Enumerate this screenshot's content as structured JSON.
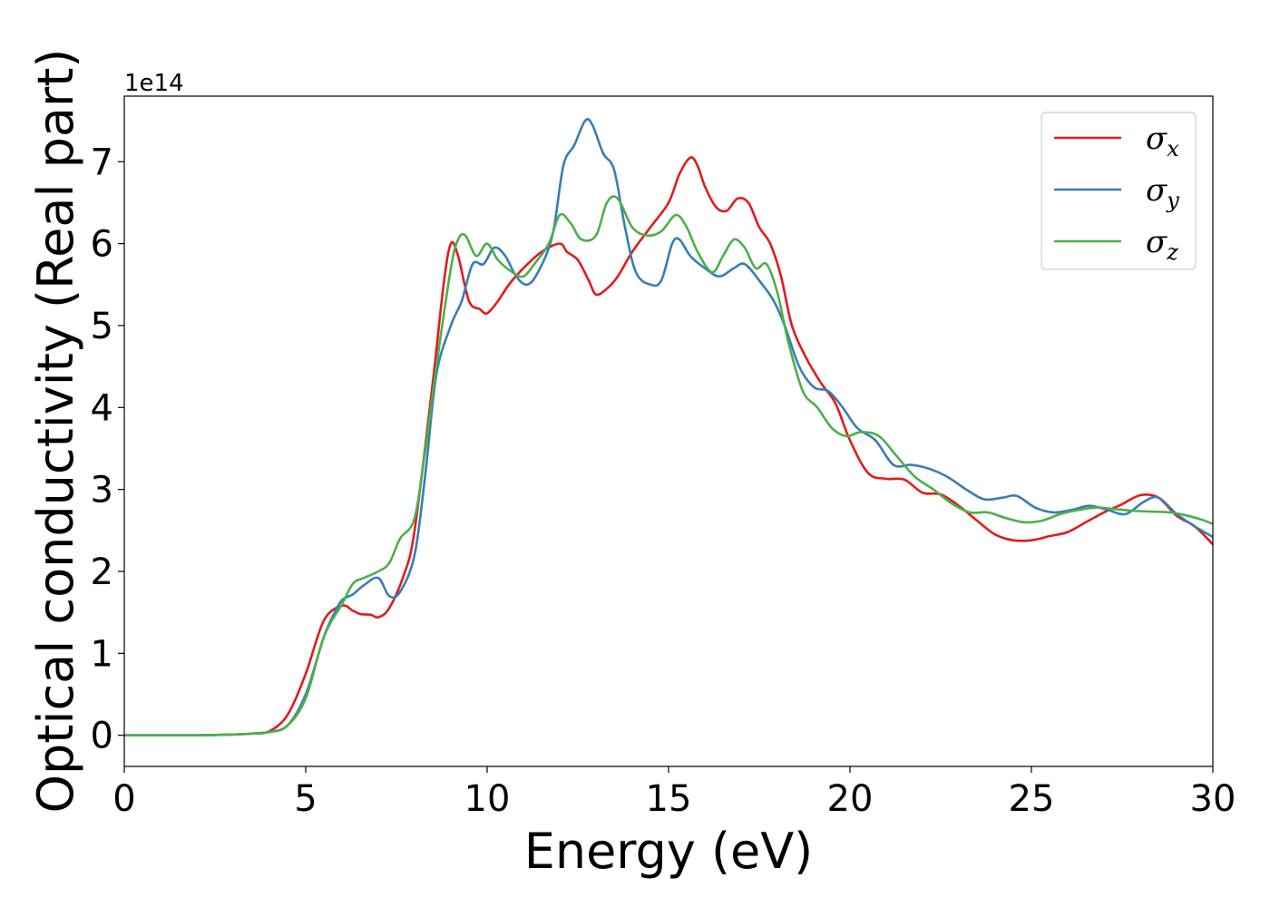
{
  "chart_data": {
    "type": "line",
    "title": "",
    "xlabel": "Energy (eV)",
    "ylabel": "Optical conductivity (Real part)",
    "y_offset_label": "1e14",
    "xlim": [
      0,
      30
    ],
    "ylim": [
      -0.38,
      7.8
    ],
    "x_ticks": [
      0,
      5,
      10,
      15,
      20,
      25,
      30
    ],
    "y_ticks": [
      0,
      1,
      2,
      3,
      4,
      5,
      6,
      7
    ],
    "grid": false,
    "legend_position": "top-right",
    "series": [
      {
        "name": "σx",
        "symbol": "σ",
        "subscript": "x",
        "color": "#e41a1c",
        "x": [
          0,
          2,
          3,
          3.5,
          4,
          4.5,
          5,
          5.5,
          6,
          6.3,
          6.5,
          6.8,
          7,
          7.3,
          7.7,
          8,
          8.5,
          8.8,
          9,
          9.2,
          9.5,
          9.8,
          10,
          10.3,
          10.6,
          11,
          11.5,
          12,
          12.2,
          12.5,
          12.8,
          13,
          13.3,
          13.6,
          14,
          14.5,
          15,
          15.3,
          15.6,
          15.8,
          16,
          16.3,
          16.6,
          16.9,
          17.2,
          17.5,
          17.8,
          18.1,
          18.4,
          18.8,
          19.2,
          19.6,
          20,
          20.5,
          21,
          21.5,
          22,
          22.5,
          23,
          23.5,
          24,
          24.5,
          25,
          25.5,
          26,
          26.5,
          27,
          27.5,
          28,
          28.5,
          29,
          29.5,
          30
        ],
        "y": [
          0,
          0,
          0.01,
          0.02,
          0.05,
          0.25,
          0.75,
          1.4,
          1.58,
          1.52,
          1.48,
          1.47,
          1.44,
          1.55,
          1.95,
          2.5,
          4.3,
          5.5,
          6.0,
          5.85,
          5.3,
          5.2,
          5.15,
          5.3,
          5.5,
          5.7,
          5.9,
          6.0,
          5.9,
          5.8,
          5.55,
          5.38,
          5.45,
          5.6,
          5.9,
          6.2,
          6.5,
          6.85,
          7.05,
          6.95,
          6.7,
          6.45,
          6.4,
          6.55,
          6.5,
          6.2,
          6.0,
          5.6,
          5.0,
          4.6,
          4.3,
          4.05,
          3.6,
          3.2,
          3.13,
          3.12,
          2.96,
          2.94,
          2.8,
          2.62,
          2.45,
          2.38,
          2.38,
          2.43,
          2.48,
          2.6,
          2.72,
          2.82,
          2.93,
          2.9,
          2.68,
          2.55,
          2.33
        ]
      },
      {
        "name": "σy",
        "symbol": "σ",
        "subscript": "y",
        "color": "#377eb8",
        "x": [
          0,
          2,
          3,
          3.5,
          4,
          4.5,
          5,
          5.5,
          5.8,
          6,
          6.3,
          6.6,
          7,
          7.3,
          7.6,
          8,
          8.3,
          8.6,
          9,
          9.3,
          9.6,
          9.9,
          10.2,
          10.5,
          10.8,
          11.1,
          11.4,
          11.8,
          12.1,
          12.4,
          12.7,
          12.9,
          13.2,
          13.5,
          13.8,
          14.1,
          14.5,
          14.8,
          15.1,
          15.3,
          15.6,
          16,
          16.4,
          16.8,
          17.1,
          17.5,
          17.9,
          18.2,
          18.6,
          19,
          19.4,
          19.8,
          20.2,
          20.7,
          21.2,
          21.7,
          22.2,
          22.7,
          23.2,
          23.7,
          24.2,
          24.6,
          25.1,
          25.6,
          26.1,
          26.6,
          27.1,
          27.6,
          28.1,
          28.5,
          29,
          29.5,
          30
        ],
        "y": [
          0,
          0,
          0.01,
          0.02,
          0.04,
          0.12,
          0.5,
          1.2,
          1.5,
          1.65,
          1.72,
          1.83,
          1.92,
          1.7,
          1.75,
          2.2,
          3.2,
          4.4,
          5.0,
          5.3,
          5.75,
          5.75,
          5.95,
          5.85,
          5.6,
          5.5,
          5.65,
          6.1,
          6.95,
          7.2,
          7.5,
          7.45,
          7.1,
          6.9,
          6.2,
          5.65,
          5.5,
          5.55,
          6.0,
          6.05,
          5.85,
          5.7,
          5.6,
          5.7,
          5.75,
          5.55,
          5.3,
          5.0,
          4.5,
          4.25,
          4.2,
          4.0,
          3.75,
          3.6,
          3.3,
          3.3,
          3.25,
          3.15,
          3.0,
          2.88,
          2.9,
          2.92,
          2.78,
          2.72,
          2.75,
          2.8,
          2.75,
          2.7,
          2.85,
          2.9,
          2.7,
          2.55,
          2.42
        ]
      },
      {
        "name": "σz",
        "symbol": "σ",
        "subscript": "z",
        "color": "#4daf4a",
        "x": [
          0,
          2,
          3,
          3.5,
          4,
          4.5,
          5,
          5.5,
          6,
          6.3,
          6.6,
          7,
          7.3,
          7.6,
          8,
          8.3,
          8.6,
          9,
          9.2,
          9.4,
          9.7,
          10,
          10.3,
          10.7,
          11,
          11.3,
          11.7,
          12,
          12.3,
          12.6,
          13,
          13.3,
          13.6,
          14,
          14.4,
          14.8,
          15.2,
          15.5,
          15.8,
          16.2,
          16.5,
          16.8,
          17.1,
          17.4,
          17.7,
          18,
          18.3,
          18.7,
          19.1,
          19.5,
          19.9,
          20.3,
          20.8,
          21.3,
          21.8,
          22.3,
          22.8,
          23.3,
          23.8,
          24.3,
          24.8,
          25.3,
          25.8,
          26.3,
          26.8,
          27.3,
          27.8,
          28.3,
          28.8,
          29.3,
          29.7,
          30
        ],
        "y": [
          0,
          0,
          0.01,
          0.02,
          0.04,
          0.12,
          0.45,
          1.2,
          1.6,
          1.85,
          1.92,
          2.0,
          2.1,
          2.4,
          2.65,
          3.5,
          4.5,
          5.7,
          6.05,
          6.1,
          5.85,
          6.0,
          5.8,
          5.65,
          5.6,
          5.75,
          6.0,
          6.35,
          6.25,
          6.05,
          6.1,
          6.5,
          6.55,
          6.2,
          6.1,
          6.15,
          6.35,
          6.2,
          5.9,
          5.65,
          5.85,
          6.05,
          5.95,
          5.7,
          5.75,
          5.4,
          4.8,
          4.2,
          4.0,
          3.75,
          3.65,
          3.7,
          3.65,
          3.4,
          3.15,
          3.0,
          2.83,
          2.72,
          2.72,
          2.65,
          2.6,
          2.62,
          2.7,
          2.75,
          2.78,
          2.76,
          2.74,
          2.73,
          2.72,
          2.68,
          2.63,
          2.58
        ]
      }
    ]
  }
}
